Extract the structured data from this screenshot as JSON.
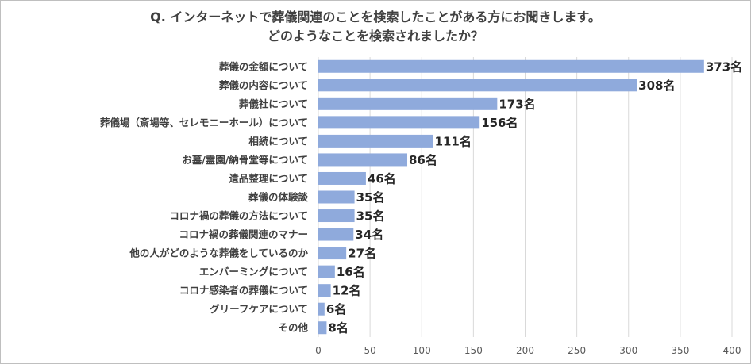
{
  "chart_data": {
    "type": "bar",
    "orientation": "horizontal",
    "title_lines": [
      "Q. インターネットで葬儀関連のことを検索したことがある方にお聞きします。",
      "どのようなことを検索されましたか？"
    ],
    "categories": [
      "葬儀の金額について",
      "葬儀の内容について",
      "葬儀社について",
      "葬儀場（斎場等、セレモニーホール）について",
      "相続について",
      "お墓/霊園/納骨堂等について",
      "遺品整理について",
      "葬儀の体験談",
      "コロナ禍の葬儀の方法について",
      "コロナ禍の葬儀関連のマナー",
      "他の人がどのような葬儀をしているのか",
      "エンバーミングについて",
      "コロナ感染者の葬儀について",
      "グリーフケアについて",
      "その他"
    ],
    "values": [
      373,
      308,
      173,
      156,
      111,
      86,
      46,
      35,
      35,
      34,
      27,
      16,
      12,
      6,
      8
    ],
    "value_labels": [
      "373名",
      "308名",
      "173名",
      "156名",
      "111名",
      "86名",
      "46名",
      "35名",
      "35名",
      "34名",
      "27名",
      "16名",
      "12名",
      "6名",
      "8名"
    ],
    "xlim": [
      0,
      400
    ],
    "xticks": [
      "0",
      "50",
      "100",
      "150",
      "200",
      "250",
      "300",
      "350",
      "400"
    ],
    "grid": true,
    "bar_color": "#8faadc",
    "grid_color": "#d9d9d9"
  }
}
